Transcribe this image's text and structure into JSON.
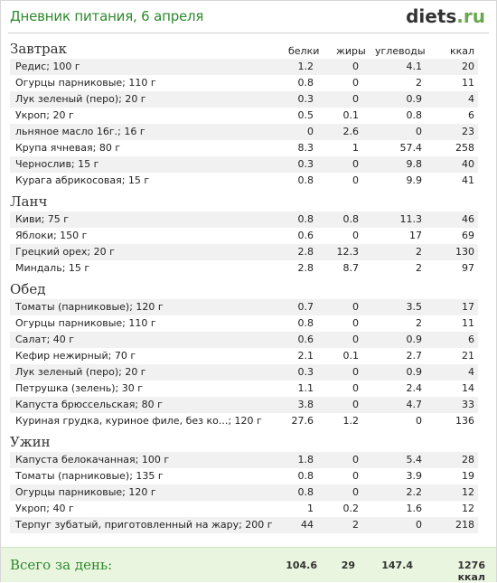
{
  "header": {
    "title": "Дневник питания, 6 апреля",
    "logo_main": "diets",
    "logo_tld": ".ru"
  },
  "columns": {
    "protein": "белки",
    "fat": "жиры",
    "carbs": "углеводы",
    "kcal": "ккал"
  },
  "meals": [
    {
      "name": "Завтрак",
      "items": [
        {
          "name": "Редис; 100 г",
          "p": "1.2",
          "f": "0",
          "c": "4.1",
          "k": "20"
        },
        {
          "name": "Огурцы парниковые; 110 г",
          "p": "0.8",
          "f": "0",
          "c": "2",
          "k": "11"
        },
        {
          "name": "Лук зеленый (перо); 20 г",
          "p": "0.3",
          "f": "0",
          "c": "0.9",
          "k": "4"
        },
        {
          "name": "Укроп; 20 г",
          "p": "0.5",
          "f": "0.1",
          "c": "0.8",
          "k": "6"
        },
        {
          "name": "льняное масло 16г.; 16 г",
          "p": "0",
          "f": "2.6",
          "c": "0",
          "k": "23"
        },
        {
          "name": "Крупа ячневая; 80 г",
          "p": "8.3",
          "f": "1",
          "c": "57.4",
          "k": "258"
        },
        {
          "name": "Чернослив; 15 г",
          "p": "0.3",
          "f": "0",
          "c": "9.8",
          "k": "40"
        },
        {
          "name": "Курага абрикосовая; 15 г",
          "p": "0.8",
          "f": "0",
          "c": "9.9",
          "k": "41"
        }
      ]
    },
    {
      "name": "Ланч",
      "items": [
        {
          "name": "Киви; 75 г",
          "p": "0.8",
          "f": "0.8",
          "c": "11.3",
          "k": "46"
        },
        {
          "name": "Яблоки; 150 г",
          "p": "0.6",
          "f": "0",
          "c": "17",
          "k": "69"
        },
        {
          "name": "Грецкий орех; 20 г",
          "p": "2.8",
          "f": "12.3",
          "c": "2",
          "k": "130"
        },
        {
          "name": "Миндаль; 15 г",
          "p": "2.8",
          "f": "8.7",
          "c": "2",
          "k": "97"
        }
      ]
    },
    {
      "name": "Обед",
      "items": [
        {
          "name": "Томаты (парниковые); 120 г",
          "p": "0.7",
          "f": "0",
          "c": "3.5",
          "k": "17"
        },
        {
          "name": "Огурцы парниковые; 110 г",
          "p": "0.8",
          "f": "0",
          "c": "2",
          "k": "11"
        },
        {
          "name": "Салат; 40 г",
          "p": "0.6",
          "f": "0",
          "c": "0.9",
          "k": "6"
        },
        {
          "name": "Кефир нежирный; 70 г",
          "p": "2.1",
          "f": "0.1",
          "c": "2.7",
          "k": "21"
        },
        {
          "name": "Лук зеленый (перо); 20 г",
          "p": "0.3",
          "f": "0",
          "c": "0.9",
          "k": "4"
        },
        {
          "name": "Петрушка (зелень); 30 г",
          "p": "1.1",
          "f": "0",
          "c": "2.4",
          "k": "14"
        },
        {
          "name": "Капуста брюссельская; 80 г",
          "p": "3.8",
          "f": "0",
          "c": "4.7",
          "k": "33"
        },
        {
          "name": "Куриная грудка, куриное филе, без ко...; 120 г",
          "p": "27.6",
          "f": "1.2",
          "c": "0",
          "k": "136"
        }
      ]
    },
    {
      "name": "Ужин",
      "items": [
        {
          "name": "Капуста белокачанная; 100 г",
          "p": "1.8",
          "f": "0",
          "c": "5.4",
          "k": "28"
        },
        {
          "name": "Томаты (парниковые); 135 г",
          "p": "0.8",
          "f": "0",
          "c": "3.9",
          "k": "19"
        },
        {
          "name": "Огурцы парниковые; 120 г",
          "p": "0.8",
          "f": "0",
          "c": "2.2",
          "k": "12"
        },
        {
          "name": "Укроп; 40 г",
          "p": "1",
          "f": "0.2",
          "c": "1.6",
          "k": "12"
        },
        {
          "name": "Терпуг зубатый, приготовленный на жару; 200 г",
          "p": "44",
          "f": "2",
          "c": "0",
          "k": "218"
        }
      ]
    }
  ],
  "totals": {
    "label": "Всего за день:",
    "protein": "104.6",
    "fat": "29",
    "carbs": "147.4",
    "kcal": "1276 ккал"
  },
  "colors": {
    "title_green": "#2d8a2d",
    "footer_bg": "#eaf5df",
    "row_alt": "#f1f1f1"
  }
}
